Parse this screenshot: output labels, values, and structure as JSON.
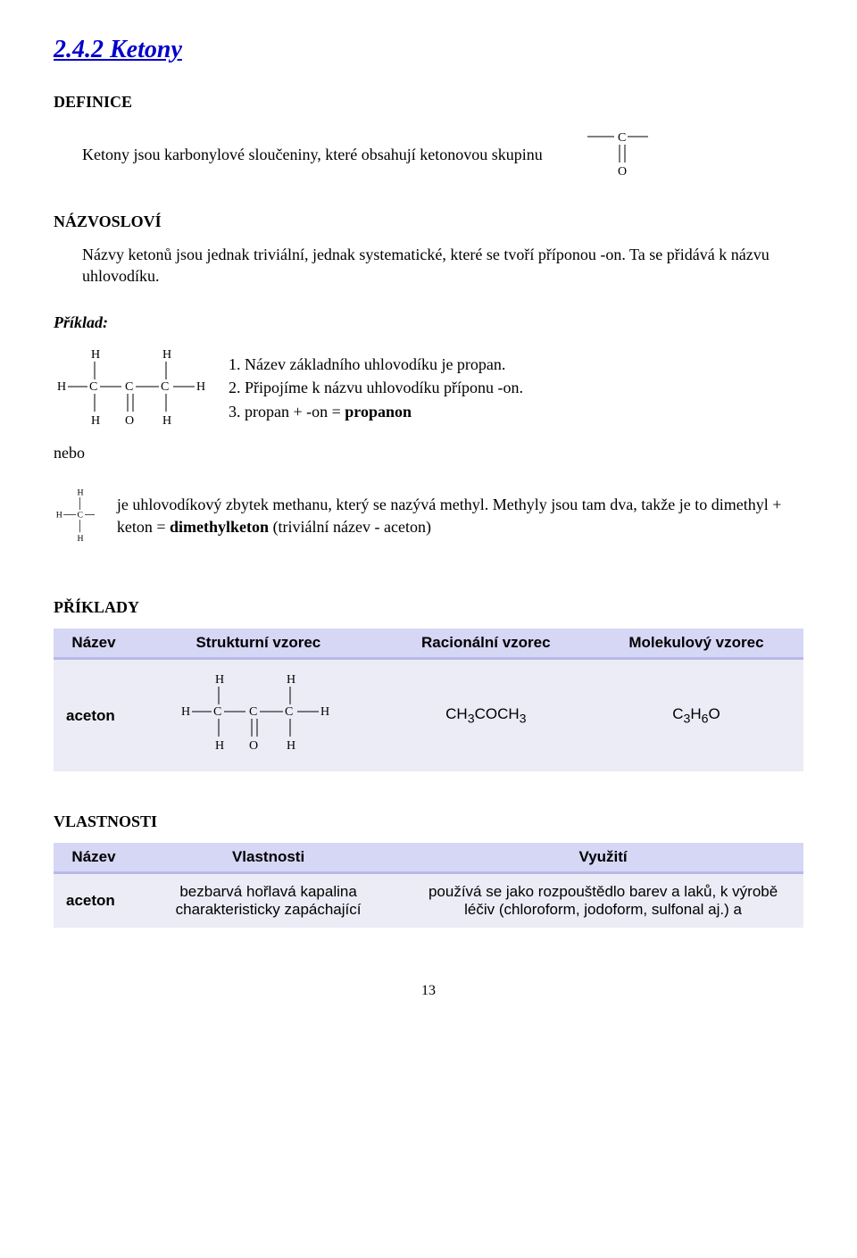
{
  "section": {
    "num_title": "2.4.2 Ketony"
  },
  "headings": {
    "definice": "DEFINICE",
    "nazvoslovi": "NÁZVOSLOVÍ",
    "priklad": "Příklad:",
    "nebo": "nebo",
    "priklady": "PŘÍKLADY",
    "vlastnosti": "VLASTNOSTI"
  },
  "definition": {
    "text": "Ketony jsou karbonylové sloučeniny, které obsahují ketonovou skupinu"
  },
  "nazvoslovi": {
    "p1": "Názvy ketonů jsou jednak triviální, jednak systematické, které se tvoří příponou -on. Ta se přidává k názvu uhlovodíku."
  },
  "example": {
    "step1_pre": "1. Název základního uhlovodíku je propan.",
    "step2_pre": "2. Připojíme k názvu uhlovodíku příponu -on.",
    "step3_pre": "3. propan + -on = ",
    "step3_bold": "propanon"
  },
  "methyl": {
    "p_pre": "je uhlovodíkový zbytek methanu, který se nazývá methyl. Methyly jsou tam dva, takže je to dimethyl + keton = ",
    "p_bold": "dimethylketon",
    "p_post": " (triviální název - aceton)"
  },
  "tables": {
    "struct": {
      "columns": [
        "Název",
        "Strukturní vzorec",
        "Racionální vzorec",
        "Molekulový vzorec"
      ],
      "row_name": "aceton",
      "rational_html": "CH<sub>3</sub>COCH<sub>3</sub>",
      "molecular_html": "C<sub>3</sub>H<sub>6</sub>O"
    },
    "props": {
      "columns": [
        "Název",
        "Vlastnosti",
        "Využití"
      ],
      "row_name": "aceton",
      "vlastnosti": "bezbarvá hořlavá kapalina charakteristicky zapáchající",
      "vyuziti": "používá se jako rozpouštědlo barev a laků, k výrobě léčiv (chloroform, jodoform, sulfonal aj.) a"
    }
  },
  "page_number": "13"
}
